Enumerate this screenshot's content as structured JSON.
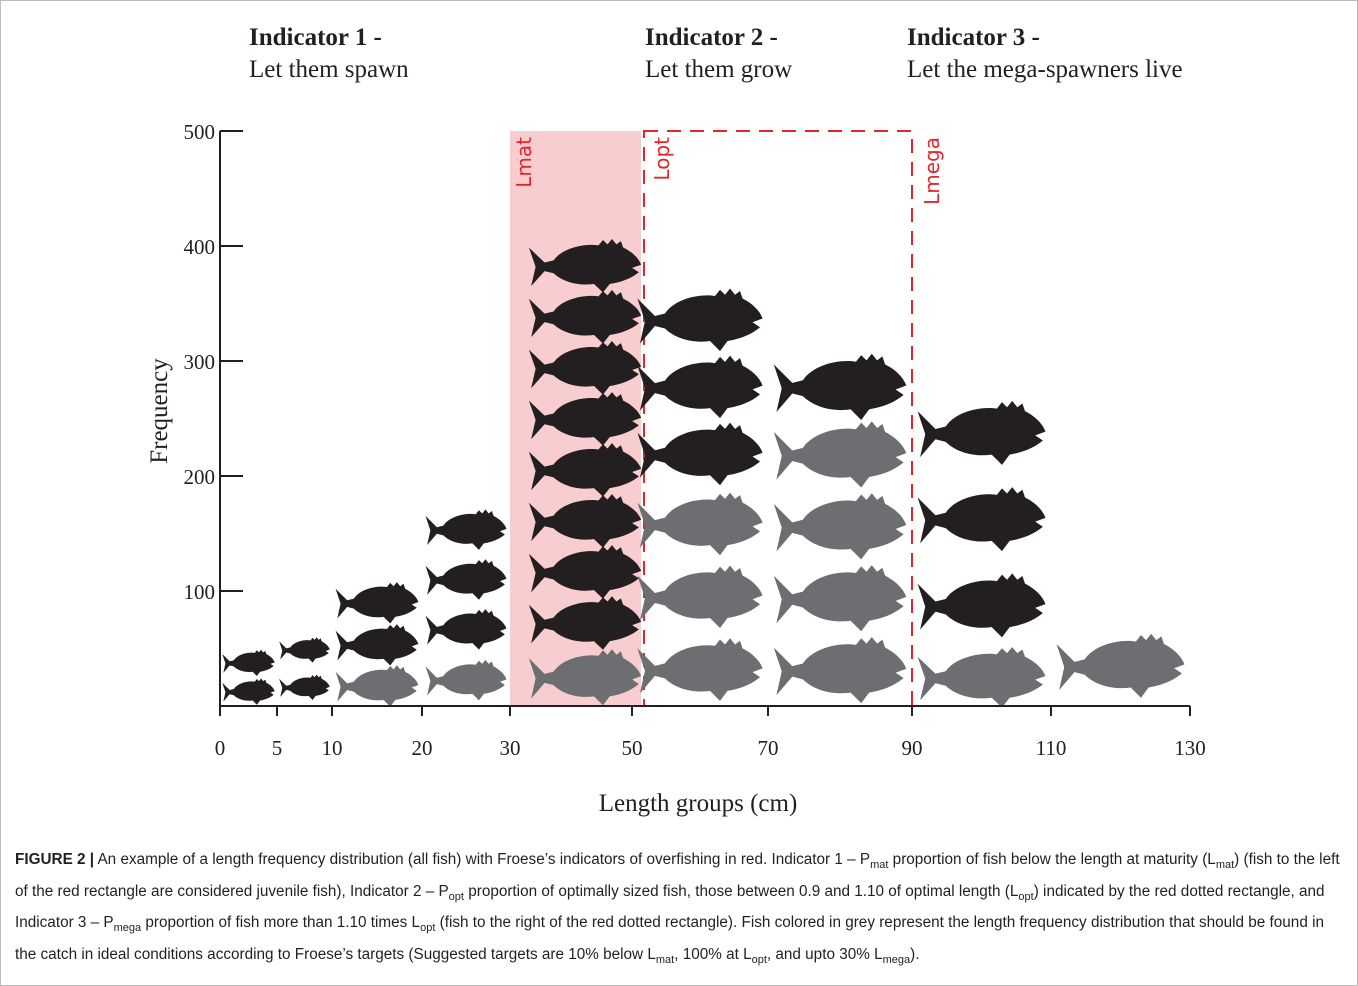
{
  "chart_data": {
    "type": "pictogram",
    "indicators": [
      {
        "title": "Indicator 1 -",
        "subtitle": "Let them spawn"
      },
      {
        "title": "Indicator 2 -",
        "subtitle": "Let them grow"
      },
      {
        "title": "Indicator 3 -",
        "subtitle": "Let the mega-spawners live"
      }
    ],
    "x_label": "Length groups (cm)",
    "y_label": "Frequency",
    "xticks": [
      0,
      5,
      10,
      20,
      30,
      50,
      70,
      90,
      110,
      130
    ],
    "ylim": [
      0,
      500
    ],
    "yticks": [
      100,
      200,
      300,
      400,
      500
    ],
    "markers": [
      "Lmat",
      "Lopt",
      "Lmega"
    ],
    "marker_color": "#e8242b",
    "shade_color": "#f8cdd0",
    "series": [
      {
        "color": "#6d6e71",
        "values": [
          0,
          0,
          35,
          45,
          50,
          190,
          250,
          50,
          70
        ]
      },
      {
        "color": "#231f20",
        "values": [
          50,
          65,
          73,
          130,
          355,
          175,
          55,
          225,
          0
        ]
      }
    ]
  },
  "caption": {
    "label": "FIGURE 2 |",
    "runs": [
      {
        "text": " An example of a length frequency distribution (all fish) with Froese’s indicators of overfishing in red. Indicator 1 – P"
      },
      {
        "sub": "mat"
      },
      {
        "text": " proportion of fish below the length at maturity (L"
      },
      {
        "sub": "mat"
      },
      {
        "text": ") (fish to the left of the red rectangle are considered juvenile fish), Indicator 2 – P"
      },
      {
        "sub": "opt"
      },
      {
        "text": " proportion of optimally sized fish, those between 0.9 and 1.10 of optimal length (L"
      },
      {
        "sub": "opt"
      },
      {
        "text": ") indicated by the red dotted rectangle, and Indicator 3 – P"
      },
      {
        "sub": "mega"
      },
      {
        "text": " proportion of fish more than 1.10 times L"
      },
      {
        "sub": "opt"
      },
      {
        "text": " (fish to the right of the red dotted rectangle). Fish colored in grey represent the length frequency distribution that should be found in the catch in ideal conditions according to Froese’s targets (Suggested targets are 10% below L"
      },
      {
        "sub": "mat"
      },
      {
        "text": ", 100% at L"
      },
      {
        "sub": "opt"
      },
      {
        "text": ", and upto 30% L"
      },
      {
        "sub": "mega"
      },
      {
        "text": ")."
      }
    ]
  }
}
